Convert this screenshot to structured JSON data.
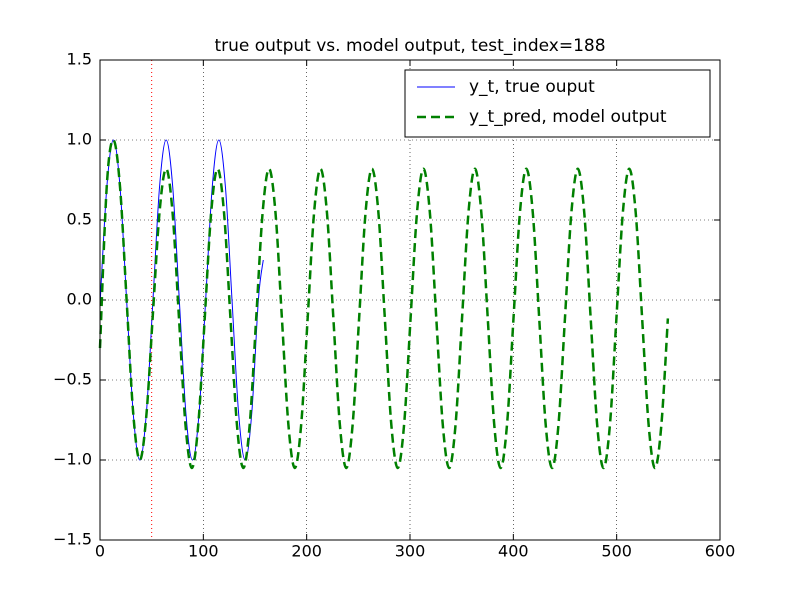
{
  "chart_data": {
    "type": "line",
    "title": "true output vs. model output, test_index=188",
    "series": [
      {
        "name": "y_t, true ouput",
        "color": "#0000ff",
        "style": "solid",
        "x": [
          0.25,
          6.625,
          13,
          19.375,
          25.75,
          32.125,
          38.5,
          44.875,
          51.25,
          57.625,
          64,
          70.375,
          76.75,
          83.125,
          89.5,
          95.875,
          102.25,
          108.625,
          115,
          121.375,
          127.75,
          134.125,
          140.5,
          146.875,
          153.25,
          158
        ],
        "values": [
          0,
          0.707,
          1,
          0.707,
          0,
          -0.707,
          -1,
          -0.707,
          0,
          0.707,
          1,
          0.707,
          0,
          -0.707,
          -1,
          -0.707,
          0,
          0.707,
          1,
          0.707,
          0,
          -0.707,
          -1,
          -0.707,
          0,
          0.25
        ]
      },
      {
        "name": "y_t_pred, model output",
        "color": "#008000",
        "style": "dashed",
        "x": [
          0,
          6.625,
          13,
          19.375,
          25.75,
          32.125,
          38.5,
          44.875,
          51.25,
          57.625,
          64,
          70.225,
          76.45,
          82.675,
          88.9,
          95.125,
          101.35,
          107.575,
          113.8,
          120.025,
          126.25,
          132.475,
          138.7,
          144.925,
          151.15,
          157.375,
          163.6,
          169.825,
          176.05,
          182.275,
          188.5,
          194.725,
          200.95,
          207.175,
          213.4,
          219.625,
          225.85,
          232.075,
          238.3,
          244.525,
          250.75,
          256.975,
          263.2,
          269.425,
          275.65,
          281.875,
          288.1,
          294.325,
          300.55,
          306.775,
          313,
          319.225,
          325.45,
          331.675,
          337.9,
          344.125,
          350.35,
          356.575,
          362.8,
          369.025,
          375.25,
          381.475,
          387.7,
          393.925,
          400.15,
          406.375,
          412.6,
          418.825,
          425.05,
          431.275,
          437.5,
          443.725,
          449.95,
          456.175,
          462.4,
          468.625,
          474.85,
          481.075,
          487.3,
          493.525,
          499.75,
          505.975,
          512.2,
          518.425,
          524.65,
          530.875,
          537.1,
          543.325,
          549.55
        ],
        "values": [
          -0.3,
          0.72,
          1.0,
          0.707,
          0,
          -0.707,
          -1.0,
          -0.72,
          -0.08,
          0.55,
          0.82,
          0.546,
          -0.115,
          -0.776,
          -1.05,
          -0.776,
          -0.115,
          0.546,
          0.82,
          0.546,
          -0.115,
          -0.776,
          -1.05,
          -0.776,
          -0.115,
          0.546,
          0.82,
          0.546,
          -0.115,
          -0.776,
          -1.05,
          -0.776,
          -0.115,
          0.546,
          0.82,
          0.546,
          -0.115,
          -0.776,
          -1.05,
          -0.776,
          -0.115,
          0.546,
          0.82,
          0.546,
          -0.115,
          -0.776,
          -1.05,
          -0.776,
          -0.115,
          0.546,
          0.82,
          0.546,
          -0.115,
          -0.776,
          -1.05,
          -0.776,
          -0.115,
          0.546,
          0.82,
          0.546,
          -0.115,
          -0.776,
          -1.05,
          -0.776,
          -0.115,
          0.546,
          0.82,
          0.546,
          -0.115,
          -0.776,
          -1.05,
          -0.776,
          -0.115,
          0.546,
          0.82,
          0.546,
          -0.115,
          -0.776,
          -1.05,
          -0.776,
          -0.115,
          0.546,
          0.82,
          0.546,
          -0.115,
          -0.776,
          -1.05,
          -0.776,
          -0.115
        ]
      }
    ],
    "vline": {
      "x": 50,
      "color": "#ff0000"
    },
    "xlim": [
      0,
      600
    ],
    "xticks": [
      0,
      100,
      200,
      300,
      400,
      500,
      600
    ],
    "ylim": [
      -1.5,
      1.5
    ],
    "yticks": [
      {
        "value": -1.5,
        "label": "−1.5"
      },
      {
        "value": -1.0,
        "label": "−1.0"
      },
      {
        "value": -0.5,
        "label": "−0.5"
      },
      {
        "value": 0,
        "label": "0.0"
      },
      {
        "value": 0.5,
        "label": "0.5"
      },
      {
        "value": 1.0,
        "label": "1.0"
      },
      {
        "value": 1.5,
        "label": "1.5"
      }
    ],
    "grid": true,
    "legend": "upper right"
  }
}
